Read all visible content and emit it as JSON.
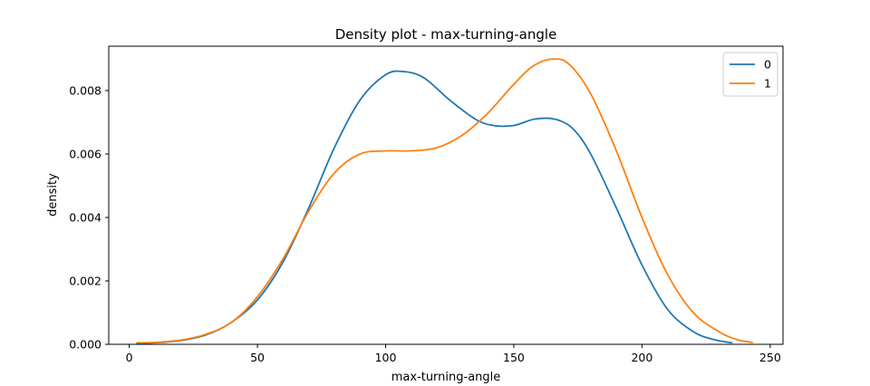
{
  "chart_data": {
    "type": "line",
    "title": "Density plot - max-turning-angle",
    "xlabel": "max-turning-angle",
    "ylabel": "density",
    "xlim": [
      -8,
      255
    ],
    "ylim": [
      0,
      0.0094
    ],
    "xticks": [
      0,
      50,
      100,
      150,
      200,
      250
    ],
    "xtick_labels": [
      "0",
      "50",
      "100",
      "150",
      "200",
      "250"
    ],
    "yticks": [
      0,
      0.002,
      0.004,
      0.006,
      0.008
    ],
    "ytick_labels": [
      "0.000",
      "0.002",
      "0.004",
      "0.006",
      "0.008"
    ],
    "grid": false,
    "legend_position": "top-right",
    "series": [
      {
        "name": "0",
        "color": "#1f77b4",
        "x": [
          3,
          10,
          20,
          30,
          40,
          50,
          60,
          70,
          80,
          90,
          100,
          107,
          115,
          125,
          135,
          142,
          150,
          158,
          166,
          173,
          180,
          190,
          200,
          210,
          220,
          228,
          235
        ],
        "y": [
          3e-05,
          5e-05,
          0.00012,
          0.0003,
          0.0007,
          0.0014,
          0.0026,
          0.0043,
          0.0062,
          0.0077,
          0.0085,
          0.0086,
          0.0084,
          0.0077,
          0.0071,
          0.0069,
          0.0069,
          0.0071,
          0.0071,
          0.0068,
          0.006,
          0.0043,
          0.0025,
          0.0011,
          0.0004,
          0.00015,
          5e-05
        ]
      },
      {
        "name": "1",
        "color": "#ff7f0e",
        "x": [
          3,
          10,
          20,
          30,
          40,
          50,
          60,
          70,
          80,
          90,
          100,
          110,
          120,
          130,
          140,
          150,
          158,
          166,
          172,
          180,
          190,
          200,
          210,
          220,
          230,
          237,
          243
        ],
        "y": [
          5e-05,
          6e-05,
          0.00013,
          0.00032,
          0.0007,
          0.0015,
          0.0027,
          0.0042,
          0.0054,
          0.006,
          0.0061,
          0.0061,
          0.0062,
          0.0066,
          0.0073,
          0.0082,
          0.0088,
          0.009,
          0.0088,
          0.0079,
          0.0061,
          0.004,
          0.0022,
          0.001,
          0.0004,
          0.00015,
          6e-05
        ]
      }
    ]
  }
}
